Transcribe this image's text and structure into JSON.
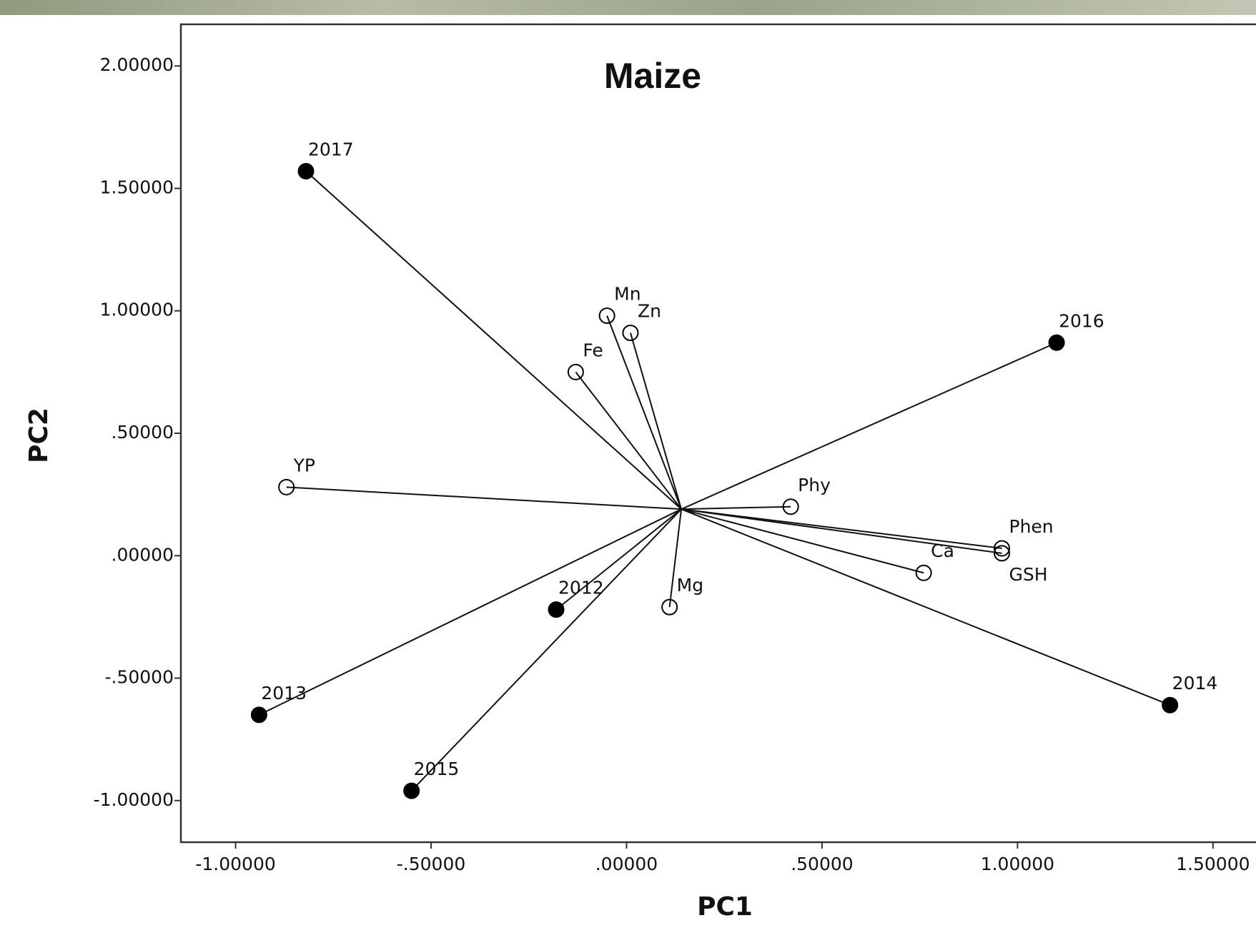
{
  "chart_data": {
    "type": "biplot",
    "title": "Maize",
    "x_label": "PC1",
    "y_label": "PC2",
    "xlim": [
      -1.14,
      1.61
    ],
    "ylim": [
      -1.17,
      2.17
    ],
    "xticks": [
      {
        "value": -1,
        "label": "-1.00000"
      },
      {
        "value": -0.5,
        "label": "-.50000"
      },
      {
        "value": 0,
        "label": ".00000"
      },
      {
        "value": 0.5,
        "label": ".50000"
      },
      {
        "value": 1,
        "label": "1.00000"
      },
      {
        "value": 1.5,
        "label": "1.50000"
      }
    ],
    "yticks": [
      {
        "value": 2,
        "label": "2.00000"
      },
      {
        "value": 1.5,
        "label": "1.50000"
      },
      {
        "value": 1,
        "label": "1.00000"
      },
      {
        "value": 0.5,
        "label": ".50000"
      },
      {
        "value": 0,
        "label": ".00000"
      },
      {
        "value": -0.5,
        "label": "-.50000"
      },
      {
        "value": -1,
        "label": "-1.00000"
      }
    ],
    "origin": {
      "x": 0.14,
      "y": 0.19
    },
    "series": [
      {
        "marker": "filled",
        "color": "#000000",
        "labels": [
          "2017",
          "2016",
          "2014",
          "2013",
          "2015",
          "2012"
        ],
        "x": [
          -0.82,
          1.1,
          1.39,
          -0.94,
          -0.55,
          -0.18
        ],
        "y": [
          1.57,
          0.87,
          -0.61,
          -0.65,
          -0.96,
          -0.22
        ]
      },
      {
        "marker": "open",
        "color": "#000000",
        "labels": [
          "Mn",
          "Zn",
          "Fe",
          "YP",
          "Phy",
          "Phen",
          "GSH",
          "Ca",
          "Mg"
        ],
        "x": [
          -0.05,
          0.01,
          -0.13,
          -0.87,
          0.42,
          0.96,
          0.96,
          0.76,
          0.11
        ],
        "y": [
          0.98,
          0.91,
          0.75,
          0.28,
          0.2,
          0.03,
          0.01,
          -0.07,
          -0.21
        ]
      }
    ]
  }
}
